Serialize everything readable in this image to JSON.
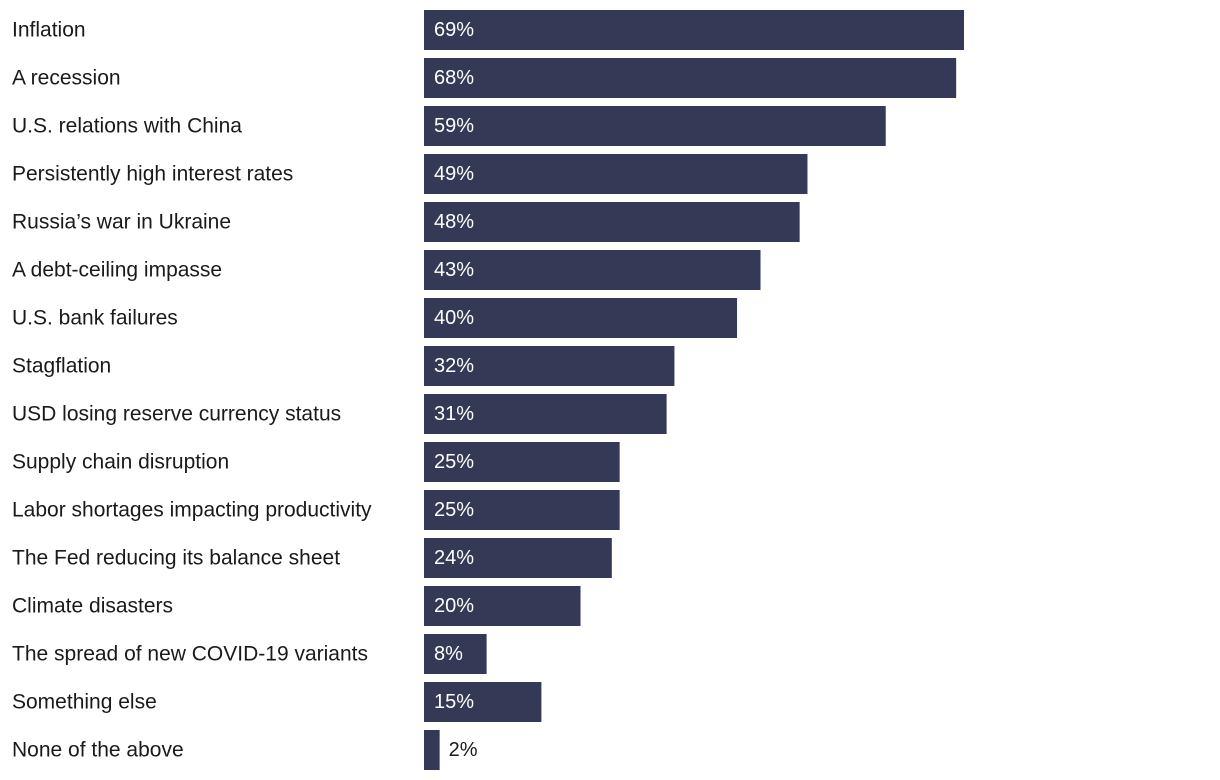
{
  "chart_data": {
    "type": "bar",
    "orientation": "horizontal",
    "title": "",
    "xlabel": "",
    "ylabel": "",
    "categories": [
      "Inflation",
      "A recession",
      "U.S. relations with China",
      "Persistently high interest rates",
      "Russia’s war in Ukraine",
      "A debt-ceiling impasse",
      "U.S. bank failures",
      "Stagflation",
      "USD losing reserve currency status",
      "Supply chain disruption",
      "Labor shortages impacting productivity",
      "The Fed reducing its balance sheet",
      "Climate disasters",
      "The spread of new COVID-19 variants",
      "Something else",
      "None of the above"
    ],
    "values": [
      69,
      68,
      59,
      49,
      48,
      43,
      40,
      32,
      31,
      25,
      25,
      24,
      20,
      8,
      15,
      2
    ],
    "value_labels": [
      "69%",
      "68%",
      "59%",
      "49%",
      "48%",
      "43%",
      "40%",
      "32%",
      "31%",
      "25%",
      "25%",
      "24%",
      "20%",
      "8%",
      "15%",
      "2%"
    ],
    "unit": "%",
    "xlim": [
      0,
      100
    ],
    "grid": false,
    "legend": "none",
    "colors": {
      "bar": "#343a56",
      "label_inside": "#ffffff",
      "label_outside": "#1a1a1a",
      "category_text": "#1a1a1a"
    }
  }
}
